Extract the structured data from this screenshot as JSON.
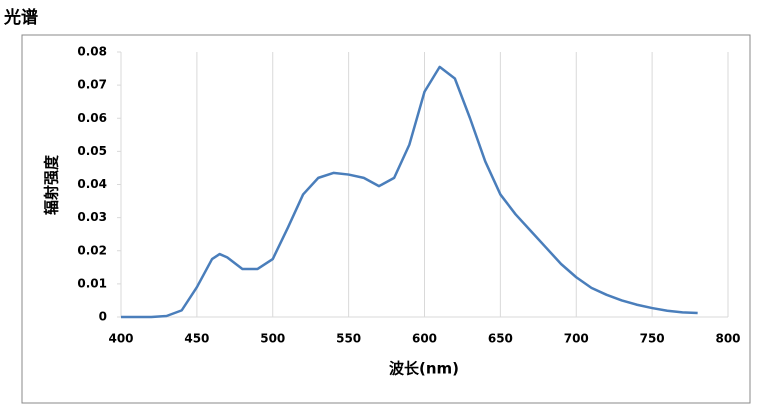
{
  "chart_data": {
    "type": "line",
    "title": "光谱",
    "x_label": "波长(nm)",
    "y_label": "辐射强度",
    "x": [
      400,
      410,
      420,
      430,
      440,
      450,
      460,
      465,
      470,
      480,
      490,
      500,
      510,
      520,
      530,
      540,
      550,
      560,
      570,
      580,
      590,
      600,
      610,
      620,
      630,
      640,
      650,
      660,
      670,
      680,
      690,
      700,
      710,
      720,
      730,
      740,
      750,
      760,
      770,
      780
    ],
    "series": [
      {
        "color": "#4a7ebb",
        "values": [
          0,
          0,
          0,
          0.0003,
          0.002,
          0.009,
          0.0175,
          0.019,
          0.018,
          0.0145,
          0.0145,
          0.0175,
          0.027,
          0.037,
          0.042,
          0.0435,
          0.043,
          0.042,
          0.0395,
          0.042,
          0.052,
          0.068,
          0.0755,
          0.072,
          0.06,
          0.047,
          0.037,
          0.031,
          0.026,
          0.021,
          0.016,
          0.012,
          0.0088,
          0.0067,
          0.005,
          0.0037,
          0.0027,
          0.0019,
          0.0014,
          0.0012
        ]
      }
    ],
    "xlim": [
      400,
      800
    ],
    "xticks": [
      400,
      450,
      500,
      550,
      600,
      650,
      700,
      750,
      800
    ],
    "ylim": [
      0,
      0.08
    ],
    "yticks": [
      0,
      0.01,
      0.02,
      0.03,
      0.04,
      0.05,
      0.06,
      0.07,
      0.08
    ],
    "grid": "x"
  }
}
